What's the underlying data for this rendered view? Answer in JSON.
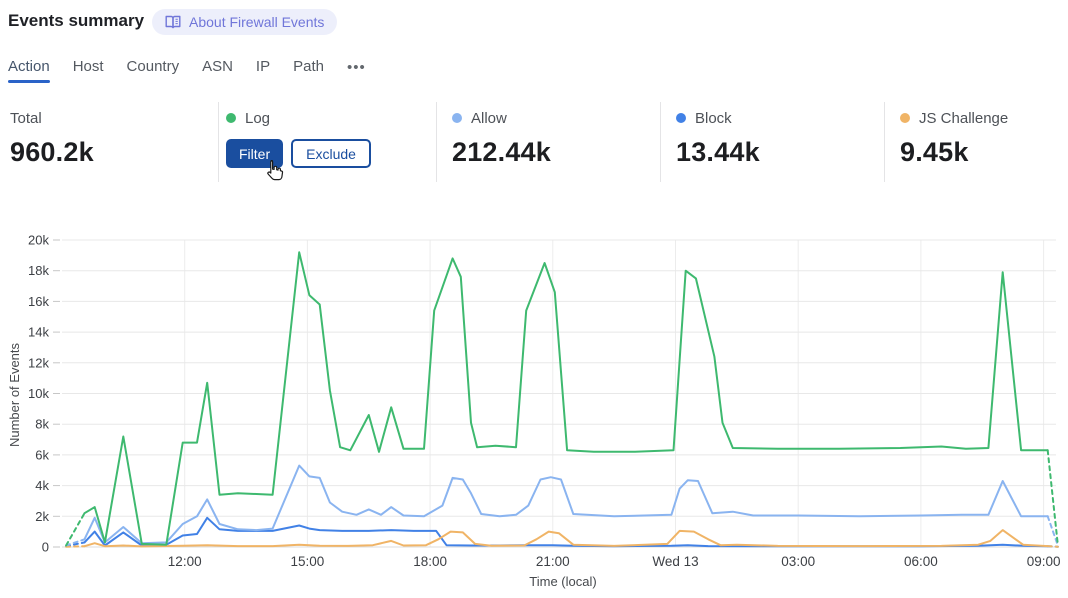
{
  "header": {
    "title": "Events summary",
    "about_label": "About Firewall Events"
  },
  "tabs": {
    "items": [
      {
        "label": "Action",
        "active": true
      },
      {
        "label": "Host",
        "active": false
      },
      {
        "label": "Country",
        "active": false
      },
      {
        "label": "ASN",
        "active": false
      },
      {
        "label": "IP",
        "active": false
      },
      {
        "label": "Path",
        "active": false
      }
    ],
    "more": "•••"
  },
  "stats": {
    "total": {
      "label": "Total",
      "value": "960.2k"
    },
    "cards": [
      {
        "name": "Log",
        "color": "#3eb96f",
        "filter_label": "Filter",
        "exclude_label": "Exclude"
      },
      {
        "name": "Allow",
        "color": "#8ab4f0",
        "value": "212.44k"
      },
      {
        "name": "Block",
        "color": "#4181e6",
        "value": "13.44k"
      },
      {
        "name": "JS Challenge",
        "color": "#f0b466",
        "value": "9.45k"
      }
    ]
  },
  "colors": {
    "accent_blue": "#1a4e9f",
    "tab_underline": "#2a63c8",
    "grid": "#e8e8e8",
    "grid_vertical": "#ececec",
    "axis_text": "#3d4045"
  },
  "chart_data": {
    "type": "line",
    "title": "",
    "xlabel": "Time (local)",
    "ylabel": "Number of Events",
    "values_unit": "thousands of events",
    "x_unit": "hours after 09:00 Tue (local)",
    "ylim_k": [
      0,
      20
    ],
    "yticks": [
      {
        "v": 0,
        "label": "0"
      },
      {
        "v": 2,
        "label": "2k"
      },
      {
        "v": 4,
        "label": "4k"
      },
      {
        "v": 6,
        "label": "6k"
      },
      {
        "v": 8,
        "label": "8k"
      },
      {
        "v": 10,
        "label": "10k"
      },
      {
        "v": 12,
        "label": "12k"
      },
      {
        "v": 14,
        "label": "14k"
      },
      {
        "v": 16,
        "label": "16k"
      },
      {
        "v": 18,
        "label": "18k"
      },
      {
        "v": 20,
        "label": "20k"
      }
    ],
    "xticks": [
      {
        "h": 3,
        "label": "12:00"
      },
      {
        "h": 6,
        "label": "15:00"
      },
      {
        "h": 9,
        "label": "18:00"
      },
      {
        "h": 12,
        "label": "21:00"
      },
      {
        "h": 15,
        "label": "Wed 13"
      },
      {
        "h": 18,
        "label": "03:00"
      },
      {
        "h": 21,
        "label": "06:00"
      },
      {
        "h": 24,
        "label": "09:00"
      }
    ],
    "legend_position": "top",
    "grid": true,
    "series": [
      {
        "name": "Block",
        "color": "#4181e6",
        "pre_dash": [
          [
            0.1,
            0.05
          ],
          [
            0.55,
            0.3
          ]
        ],
        "points": [
          [
            0.55,
            0.3
          ],
          [
            0.8,
            1.0
          ],
          [
            1.05,
            0.1
          ],
          [
            1.5,
            0.95
          ],
          [
            1.95,
            0.1
          ],
          [
            2.55,
            0.15
          ],
          [
            2.95,
            0.75
          ],
          [
            3.3,
            0.85
          ],
          [
            3.55,
            1.9
          ],
          [
            3.85,
            1.15
          ],
          [
            4.3,
            1.05
          ],
          [
            4.75,
            1.05
          ],
          [
            5.15,
            1.05
          ],
          [
            5.8,
            1.4
          ],
          [
            6.05,
            1.2
          ],
          [
            6.3,
            1.1
          ],
          [
            6.85,
            1.05
          ],
          [
            7.5,
            1.05
          ],
          [
            8.05,
            1.1
          ],
          [
            8.6,
            1.05
          ],
          [
            9.15,
            1.05
          ],
          [
            9.4,
            0.12
          ],
          [
            10.0,
            0.1
          ],
          [
            10.7,
            0.1
          ],
          [
            11.4,
            0.12
          ],
          [
            12.0,
            0.12
          ],
          [
            12.5,
            0.08
          ],
          [
            13.5,
            0.05
          ],
          [
            14.9,
            0.08
          ],
          [
            15.3,
            0.12
          ],
          [
            15.8,
            0.06
          ],
          [
            17.0,
            0.05
          ],
          [
            19.0,
            0.05
          ],
          [
            21.0,
            0.05
          ],
          [
            22.4,
            0.08
          ],
          [
            23.0,
            0.15
          ],
          [
            23.5,
            0.08
          ],
          [
            24.1,
            0.05
          ]
        ],
        "post_dash": [
          [
            24.1,
            0.05
          ],
          [
            24.35,
            0.02
          ]
        ]
      },
      {
        "name": "JS Challenge",
        "color": "#f0b466",
        "pre_dash": [
          [
            0.1,
            0.02
          ],
          [
            0.55,
            0.05
          ]
        ],
        "points": [
          [
            0.55,
            0.05
          ],
          [
            0.8,
            0.25
          ],
          [
            1.05,
            0.05
          ],
          [
            1.5,
            0.1
          ],
          [
            1.95,
            0.04
          ],
          [
            2.95,
            0.08
          ],
          [
            3.55,
            0.12
          ],
          [
            4.3,
            0.06
          ],
          [
            5.15,
            0.06
          ],
          [
            5.8,
            0.15
          ],
          [
            6.3,
            0.08
          ],
          [
            7.0,
            0.07
          ],
          [
            7.6,
            0.12
          ],
          [
            8.05,
            0.4
          ],
          [
            8.35,
            0.1
          ],
          [
            8.9,
            0.12
          ],
          [
            9.2,
            0.5
          ],
          [
            9.5,
            1.0
          ],
          [
            9.8,
            0.95
          ],
          [
            10.1,
            0.2
          ],
          [
            10.5,
            0.08
          ],
          [
            11.3,
            0.1
          ],
          [
            11.6,
            0.5
          ],
          [
            11.9,
            1.0
          ],
          [
            12.15,
            0.9
          ],
          [
            12.5,
            0.15
          ],
          [
            13.5,
            0.07
          ],
          [
            14.8,
            0.2
          ],
          [
            15.1,
            1.05
          ],
          [
            15.45,
            1.0
          ],
          [
            15.8,
            0.5
          ],
          [
            16.1,
            0.12
          ],
          [
            16.5,
            0.15
          ],
          [
            17.5,
            0.07
          ],
          [
            19.5,
            0.06
          ],
          [
            21.5,
            0.07
          ],
          [
            22.4,
            0.15
          ],
          [
            22.7,
            0.4
          ],
          [
            23.0,
            1.1
          ],
          [
            23.5,
            0.15
          ],
          [
            24.1,
            0.06
          ]
        ],
        "post_dash": [
          [
            24.1,
            0.06
          ],
          [
            24.35,
            0.02
          ]
        ]
      },
      {
        "name": "Allow",
        "color": "#8ab4f0",
        "pre_dash": [
          [
            0.1,
            0.1
          ],
          [
            0.55,
            0.5
          ]
        ],
        "points": [
          [
            0.55,
            0.5
          ],
          [
            0.8,
            1.9
          ],
          [
            1.05,
            0.3
          ],
          [
            1.5,
            1.3
          ],
          [
            1.95,
            0.25
          ],
          [
            2.55,
            0.3
          ],
          [
            2.95,
            1.5
          ],
          [
            3.3,
            2.0
          ],
          [
            3.55,
            3.1
          ],
          [
            3.85,
            1.5
          ],
          [
            4.3,
            1.15
          ],
          [
            4.75,
            1.1
          ],
          [
            5.15,
            1.2
          ],
          [
            5.8,
            5.3
          ],
          [
            6.05,
            4.6
          ],
          [
            6.3,
            4.5
          ],
          [
            6.55,
            2.9
          ],
          [
            6.85,
            2.3
          ],
          [
            7.2,
            2.1
          ],
          [
            7.5,
            2.45
          ],
          [
            7.8,
            2.1
          ],
          [
            8.05,
            2.6
          ],
          [
            8.35,
            2.05
          ],
          [
            8.85,
            2.0
          ],
          [
            9.3,
            2.7
          ],
          [
            9.55,
            4.5
          ],
          [
            9.8,
            4.4
          ],
          [
            10.0,
            3.5
          ],
          [
            10.25,
            2.15
          ],
          [
            10.7,
            2.0
          ],
          [
            11.1,
            2.1
          ],
          [
            11.4,
            2.7
          ],
          [
            11.7,
            4.4
          ],
          [
            11.95,
            4.55
          ],
          [
            12.2,
            4.4
          ],
          [
            12.5,
            2.15
          ],
          [
            13.5,
            2.0
          ],
          [
            14.9,
            2.1
          ],
          [
            15.1,
            3.8
          ],
          [
            15.3,
            4.35
          ],
          [
            15.55,
            4.3
          ],
          [
            15.9,
            2.2
          ],
          [
            16.4,
            2.3
          ],
          [
            16.9,
            2.05
          ],
          [
            18.0,
            2.05
          ],
          [
            19.5,
            2.0
          ],
          [
            21.0,
            2.05
          ],
          [
            22.0,
            2.1
          ],
          [
            22.65,
            2.1
          ],
          [
            23.0,
            4.3
          ],
          [
            23.45,
            2.0
          ],
          [
            24.1,
            2.0
          ]
        ],
        "post_dash": [
          [
            24.1,
            2.0
          ],
          [
            24.35,
            0.1
          ]
        ]
      },
      {
        "name": "Log",
        "color": "#3eb96f",
        "pre_dash": [
          [
            0.1,
            0.1
          ],
          [
            0.55,
            2.2
          ]
        ],
        "points": [
          [
            0.55,
            2.2
          ],
          [
            0.8,
            2.6
          ],
          [
            1.05,
            0.3
          ],
          [
            1.5,
            7.2
          ],
          [
            1.95,
            0.2
          ],
          [
            2.55,
            0.15
          ],
          [
            2.95,
            6.8
          ],
          [
            3.3,
            6.8
          ],
          [
            3.55,
            10.7
          ],
          [
            3.85,
            3.4
          ],
          [
            4.3,
            3.5
          ],
          [
            4.75,
            3.45
          ],
          [
            5.15,
            3.4
          ],
          [
            5.8,
            19.2
          ],
          [
            6.05,
            16.4
          ],
          [
            6.3,
            15.8
          ],
          [
            6.55,
            10.2
          ],
          [
            6.8,
            6.5
          ],
          [
            7.05,
            6.3
          ],
          [
            7.5,
            8.6
          ],
          [
            7.75,
            6.2
          ],
          [
            8.05,
            9.1
          ],
          [
            8.35,
            6.4
          ],
          [
            8.85,
            6.4
          ],
          [
            9.1,
            15.4
          ],
          [
            9.55,
            18.8
          ],
          [
            9.75,
            17.6
          ],
          [
            10.0,
            8.1
          ],
          [
            10.15,
            6.5
          ],
          [
            10.6,
            6.6
          ],
          [
            11.1,
            6.5
          ],
          [
            11.35,
            15.4
          ],
          [
            11.8,
            18.5
          ],
          [
            12.05,
            16.6
          ],
          [
            12.35,
            6.3
          ],
          [
            13.0,
            6.2
          ],
          [
            14.0,
            6.2
          ],
          [
            14.95,
            6.3
          ],
          [
            15.25,
            18.0
          ],
          [
            15.5,
            17.5
          ],
          [
            15.95,
            12.4
          ],
          [
            16.15,
            8.1
          ],
          [
            16.4,
            6.45
          ],
          [
            17.5,
            6.4
          ],
          [
            19.0,
            6.4
          ],
          [
            20.5,
            6.45
          ],
          [
            21.5,
            6.55
          ],
          [
            22.1,
            6.4
          ],
          [
            22.65,
            6.45
          ],
          [
            23.0,
            17.9
          ],
          [
            23.45,
            6.3
          ],
          [
            24.1,
            6.3
          ]
        ],
        "post_dash": [
          [
            24.1,
            6.3
          ],
          [
            24.35,
            0.1
          ]
        ]
      }
    ]
  }
}
